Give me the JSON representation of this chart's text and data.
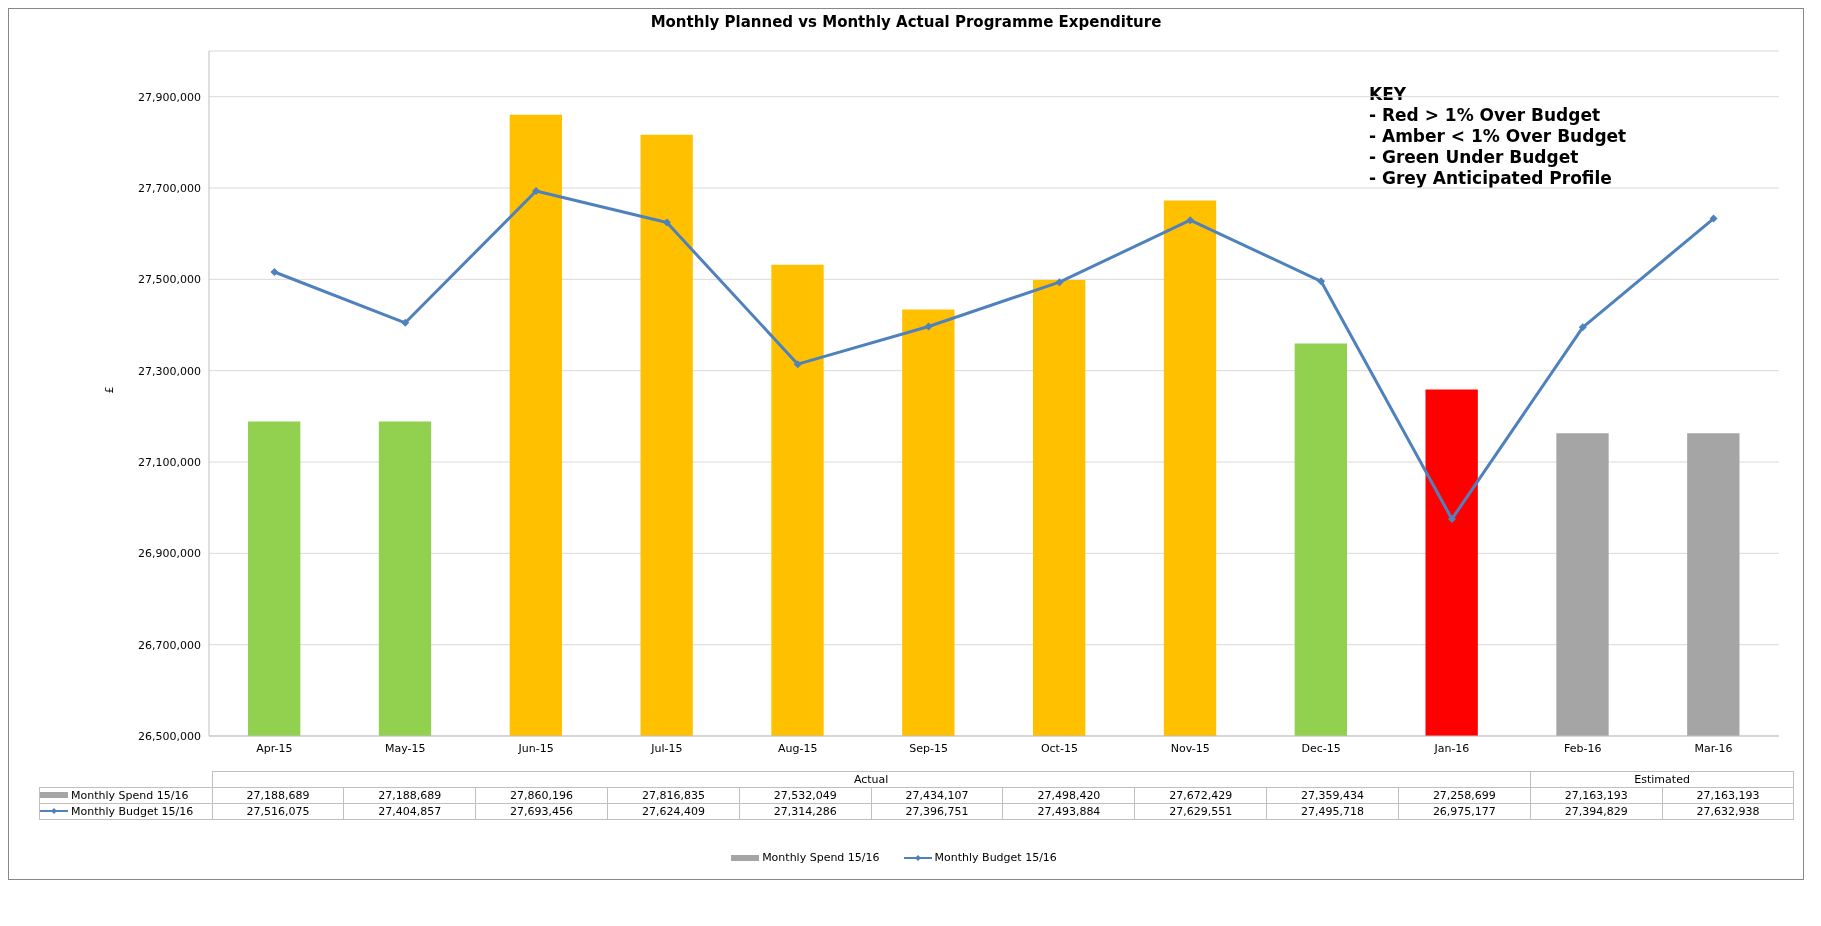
{
  "chart_data": {
    "type": "bar",
    "title": "Monthly Planned vs Monthly Actual Programme Expenditure",
    "ylabel": "£",
    "categories": [
      "Apr-15",
      "May-15",
      "Jun-15",
      "Jul-15",
      "Aug-15",
      "Sep-15",
      "Oct-15",
      "Nov-15",
      "Dec-15",
      "Jan-16",
      "Feb-16",
      "Mar-16"
    ],
    "series": [
      {
        "name": "Monthly Spend 15/16",
        "color": "#a5a5a5",
        "colors": [
          "#92d050",
          "#92d050",
          "#ffc000",
          "#ffc000",
          "#ffc000",
          "#ffc000",
          "#ffc000",
          "#ffc000",
          "#92d050",
          "#ff0000",
          "#a5a5a5",
          "#a5a5a5"
        ],
        "values": [
          27188689,
          27188689,
          27860196,
          27816835,
          27532049,
          27434107,
          27498420,
          27672429,
          27359434,
          27258699,
          27163193,
          27163193
        ],
        "value_labels": [
          "27,188,689",
          "27,188,689",
          "27,860,196",
          "27,816,835",
          "27,532,049",
          "27,434,107",
          "27,498,420",
          "27,672,429",
          "27,359,434",
          "27,258,699",
          "27,163,193",
          "27,163,193"
        ]
      },
      {
        "name": "Monthly Budget 15/16",
        "type": "line",
        "color": "#4f81bd",
        "values": [
          27516075,
          27404857,
          27693456,
          27624409,
          27314286,
          27396751,
          27493884,
          27629551,
          27495718,
          26975177,
          27394829,
          27632938
        ],
        "value_labels": [
          "27,516,075",
          "27,404,857",
          "27,693,456",
          "27,624,409",
          "27,314,286",
          "27,396,751",
          "27,493,884",
          "27,629,551",
          "27,495,718",
          "26,975,177",
          "27,394,829",
          "27,632,938"
        ]
      }
    ],
    "ylim": [
      26500000,
      28000000
    ],
    "yticks": [
      {
        "value": 26500000,
        "label": "26,500,000"
      },
      {
        "value": 26700000,
        "label": "26,700,000"
      },
      {
        "value": 26900000,
        "label": "26,900,000"
      },
      {
        "value": 27100000,
        "label": "27,100,000"
      },
      {
        "value": 27300000,
        "label": "27,300,000"
      },
      {
        "value": 27500000,
        "label": "27,500,000"
      },
      {
        "value": 27700000,
        "label": "27,700,000"
      },
      {
        "value": 27900000,
        "label": "27,900,000"
      }
    ],
    "grid": "y",
    "legend": "bottom",
    "marker": "diamond",
    "line_style": "solid",
    "annotations": [
      "KEY",
      "- Red > 1% Over Budget",
      "- Amber < 1% Over Budget",
      "- Green Under Budget",
      "- Grey Anticipated Profile",
      "Actual",
      "Estimated"
    ]
  }
}
